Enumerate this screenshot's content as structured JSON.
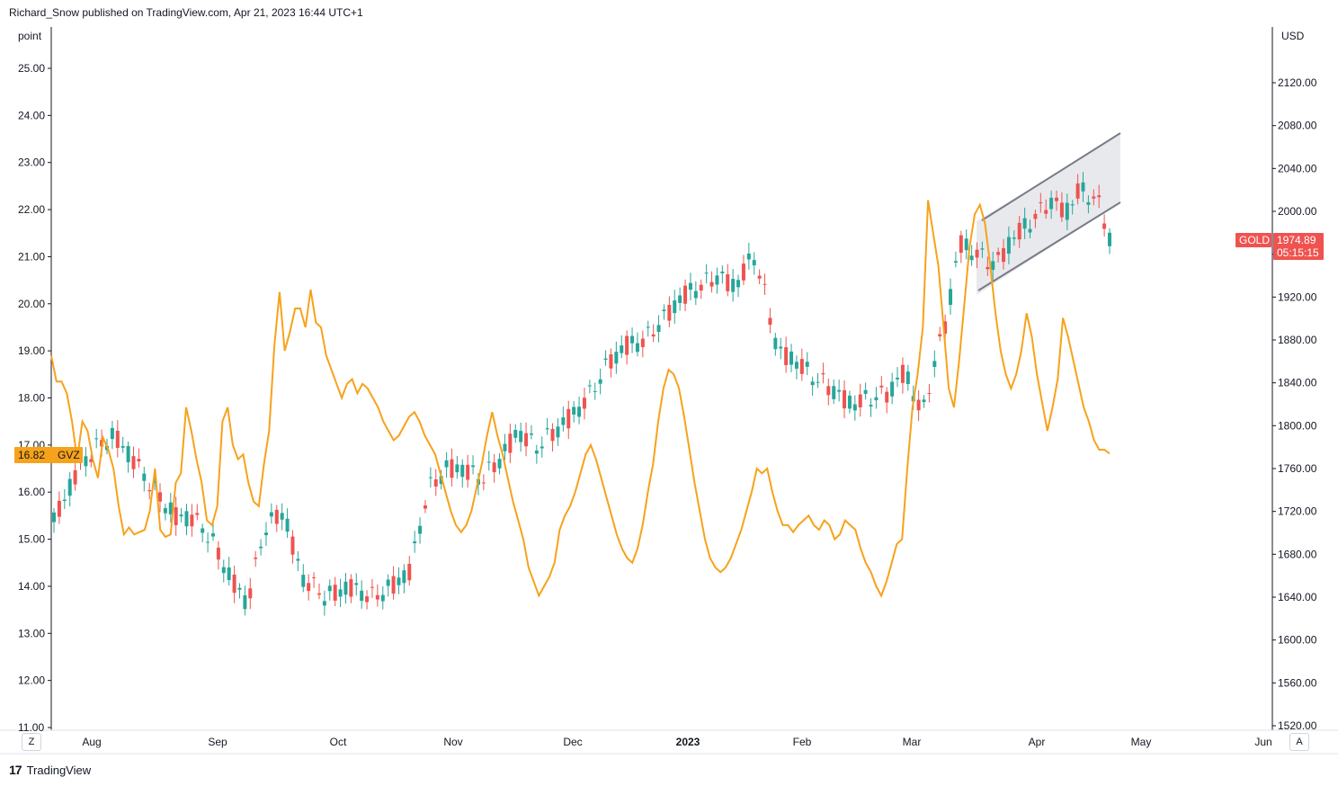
{
  "header": {
    "attribution": "Richard_Snow published on TradingView.com, Apr 21, 2023 16:44 UTC+1"
  },
  "footer": {
    "brand": "TradingView",
    "logo_text": "17"
  },
  "controls": {
    "left_button": "Z",
    "right_button": "A"
  },
  "colors": {
    "up": "#26a69a",
    "down": "#ef5350",
    "gvz_line": "#f7a21b",
    "channel_fill": "#e8e9ed",
    "channel_line": "#787b86"
  },
  "chart_data": {
    "type": "line",
    "left_axis": {
      "label": "point",
      "ticks": [
        "25.00",
        "24.00",
        "23.00",
        "22.00",
        "21.00",
        "20.00",
        "19.00",
        "18.00",
        "17.00",
        "16.00",
        "15.00",
        "14.00",
        "13.00",
        "12.00",
        "11.00"
      ],
      "range": [
        11,
        25.6
      ]
    },
    "right_axis": {
      "label": "USD",
      "ticks": [
        "2120.00",
        "2080.00",
        "2040.00",
        "2000.00",
        "1960.00",
        "1920.00",
        "1880.00",
        "1840.00",
        "1800.00",
        "1760.00",
        "1720.00",
        "1680.00",
        "1640.00",
        "1600.00",
        "1560.00",
        "1520.00"
      ],
      "range": [
        1520,
        2150
      ]
    },
    "x_axis": {
      "ticks": [
        "Aug",
        "Sep",
        "Oct",
        "Nov",
        "Dec",
        "2023",
        "Feb",
        "Mar",
        "Apr",
        "May",
        "Jun"
      ]
    },
    "series": [
      {
        "name": "GVZ",
        "axis": "left",
        "last_value": "16.82",
        "values": [
          18.9,
          18.35,
          18.35,
          18.1,
          17.5,
          16.7,
          17.5,
          17.3,
          16.7,
          16.3,
          17.15,
          16.9,
          16.5,
          15.7,
          15.1,
          15.25,
          15.1,
          15.15,
          15.2,
          15.6,
          16.5,
          15.2,
          15.05,
          15.1,
          16.2,
          16.4,
          17.8,
          17.3,
          16.7,
          16.2,
          15.4,
          15.3,
          15.7,
          17.5,
          17.8,
          17.0,
          16.7,
          16.8,
          16.2,
          15.8,
          15.7,
          16.6,
          17.3,
          19.1,
          20.25,
          19.0,
          19.4,
          19.9,
          19.9,
          19.5,
          20.3,
          19.6,
          19.5,
          18.9,
          18.6,
          18.3,
          18.0,
          18.3,
          18.4,
          18.1,
          18.3,
          18.2,
          18.0,
          17.8,
          17.5,
          17.3,
          17.1,
          17.2,
          17.4,
          17.6,
          17.7,
          17.5,
          17.2,
          17.0,
          16.8,
          16.4,
          16.0,
          15.6,
          15.3,
          15.15,
          15.3,
          15.6,
          16.1,
          16.6,
          17.2,
          17.7,
          17.2,
          16.8,
          16.3,
          15.8,
          15.4,
          15.0,
          14.4,
          14.1,
          13.8,
          14.0,
          14.2,
          14.5,
          15.2,
          15.5,
          15.7,
          16.0,
          16.4,
          16.8,
          17.0,
          16.7,
          16.3,
          15.9,
          15.5,
          15.1,
          14.8,
          14.6,
          14.5,
          14.8,
          15.3,
          16.0,
          16.6,
          17.5,
          18.2,
          18.6,
          18.5,
          18.2,
          17.6,
          16.9,
          16.2,
          15.6,
          15.0,
          14.6,
          14.4,
          14.3,
          14.4,
          14.6,
          14.9,
          15.2,
          15.6,
          16.0,
          16.5,
          16.4,
          16.5,
          16.0,
          15.6,
          15.3,
          15.3,
          15.15,
          15.3,
          15.4,
          15.5,
          15.3,
          15.2,
          15.4,
          15.3,
          15.0,
          15.1,
          15.4,
          15.3,
          15.2,
          14.8,
          14.5,
          14.3,
          14.0,
          13.8,
          14.1,
          14.5,
          14.9,
          15.0,
          16.5,
          17.8,
          18.5,
          19.5,
          22.2,
          21.5,
          20.8,
          19.5,
          18.2,
          17.8,
          18.8,
          20.0,
          21.2,
          21.9,
          22.1,
          21.7,
          20.8,
          19.8,
          19.0,
          18.5,
          18.2,
          18.5,
          19.0,
          19.8,
          19.3,
          18.5,
          17.9,
          17.3,
          17.8,
          18.4,
          19.7,
          19.3,
          18.8,
          18.3,
          17.8,
          17.5,
          17.1,
          16.9,
          16.9,
          16.82
        ]
      },
      {
        "name": "GOLD",
        "axis": "right",
        "type": "candlestick",
        "last_value": "1974.89",
        "countdown": "05:15:15"
      }
    ]
  }
}
